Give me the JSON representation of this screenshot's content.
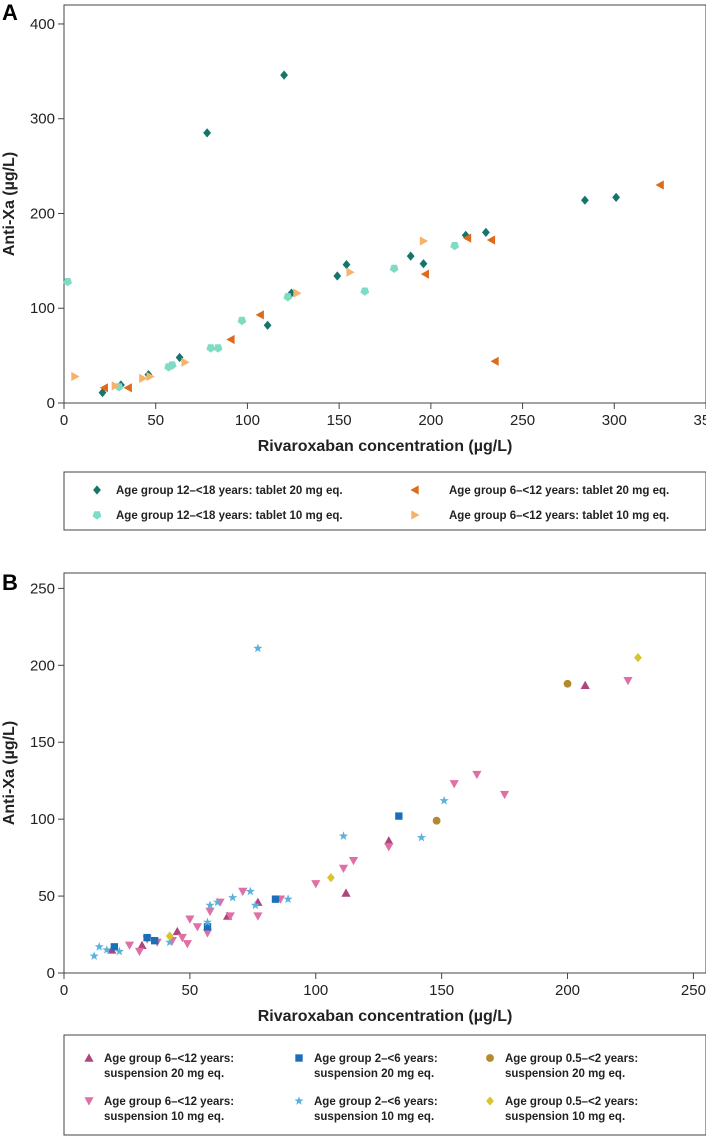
{
  "chart_data": [
    {
      "panel": "A",
      "type": "scatter",
      "xlabel": "Rivaroxaban concentration (µg/L)",
      "ylabel": "Anti-Xa (µg/L)",
      "xlim": [
        0,
        350
      ],
      "ylim": [
        0,
        420
      ],
      "xticks": [
        0,
        50,
        100,
        150,
        200,
        250,
        300,
        350
      ],
      "yticks": [
        0,
        100,
        200,
        300,
        400
      ],
      "series": [
        {
          "name": "Age group 12–<18 years: tablet 20 mg eq.",
          "marker": "diamond",
          "color": "#15756b",
          "points": [
            [
              21,
              11
            ],
            [
              31,
              19
            ],
            [
              46,
              30
            ],
            [
              63,
              48
            ],
            [
              78,
              285
            ],
            [
              111,
              82
            ],
            [
              120,
              346
            ],
            [
              124,
              116
            ],
            [
              149,
              134
            ],
            [
              154,
              146
            ],
            [
              189,
              155
            ],
            [
              196,
              147
            ],
            [
              219,
              177
            ],
            [
              230,
              180
            ],
            [
              284,
              214
            ],
            [
              301,
              217
            ]
          ]
        },
        {
          "name": "Age group 12–<18 years: tablet 10 mg eq.",
          "marker": "pentagon",
          "color": "#7fdcc4",
          "points": [
            [
              2,
              128
            ],
            [
              30,
              17
            ],
            [
              57,
              38
            ],
            [
              59,
              40
            ],
            [
              80,
              58
            ],
            [
              84,
              58
            ],
            [
              97,
              87
            ],
            [
              122,
              112
            ],
            [
              164,
              118
            ],
            [
              180,
              142
            ],
            [
              213,
              166
            ]
          ]
        },
        {
          "name": "Age group 6–<12 years: tablet 20 mg eq.",
          "marker": "triangle-left",
          "color": "#de6a1e",
          "points": [
            [
              22,
              16
            ],
            [
              35,
              16
            ],
            [
              91,
              67
            ],
            [
              107,
              93
            ],
            [
              197,
              136
            ],
            [
              220,
              174
            ],
            [
              233,
              172
            ],
            [
              235,
              44
            ],
            [
              325,
              230
            ]
          ]
        },
        {
          "name": "Age group 6–<12 years: tablet 10 mg eq.",
          "marker": "triangle-right",
          "color": "#f6b26b",
          "points": [
            [
              6,
              28
            ],
            [
              28,
              18
            ],
            [
              43,
              26
            ],
            [
              47,
              28
            ],
            [
              66,
              43
            ],
            [
              127,
              116
            ],
            [
              156,
              138
            ],
            [
              196,
              171
            ]
          ]
        }
      ]
    },
    {
      "panel": "B",
      "type": "scatter",
      "xlabel": "Rivaroxaban concentration (µg/L)",
      "ylabel": "Anti-Xa (µg/L)",
      "xlim": [
        0,
        255
      ],
      "ylim": [
        0,
        260
      ],
      "xticks": [
        0,
        50,
        100,
        150,
        200,
        250
      ],
      "yticks": [
        0,
        50,
        100,
        150,
        200,
        250
      ],
      "series": [
        {
          "name": "Age group 6–<12 years: suspension 20 mg eq.",
          "marker": "triangle-up",
          "color": "#b0447e",
          "points": [
            [
              19,
              15
            ],
            [
              31,
              18
            ],
            [
              45,
              27
            ],
            [
              65,
              37
            ],
            [
              77,
              46
            ],
            [
              112,
              52
            ],
            [
              129,
              86
            ],
            [
              207,
              187
            ]
          ]
        },
        {
          "name": "Age group 6–<12 years: suspension 10 mg eq.",
          "marker": "triangle-down",
          "color": "#e06fa5",
          "points": [
            [
              26,
              18
            ],
            [
              30,
              14
            ],
            [
              33,
              22
            ],
            [
              37,
              20
            ],
            [
              43,
              21
            ],
            [
              47,
              23
            ],
            [
              49,
              19
            ],
            [
              50,
              35
            ],
            [
              53,
              30
            ],
            [
              57,
              26
            ],
            [
              58,
              40
            ],
            [
              62,
              46
            ],
            [
              66,
              37
            ],
            [
              71,
              53
            ],
            [
              77,
              37
            ],
            [
              86,
              48
            ],
            [
              100,
              58
            ],
            [
              111,
              68
            ],
            [
              115,
              73
            ],
            [
              129,
              82
            ],
            [
              155,
              123
            ],
            [
              164,
              129
            ],
            [
              175,
              116
            ],
            [
              224,
              190
            ]
          ]
        },
        {
          "name": "Age group 2–<6 years: suspension 20 mg eq.",
          "marker": "square",
          "color": "#1a6fb8",
          "points": [
            [
              20,
              17
            ],
            [
              33,
              23
            ],
            [
              36,
              21
            ],
            [
              57,
              30
            ],
            [
              84,
              48
            ],
            [
              133,
              102
            ]
          ]
        },
        {
          "name": "Age group 2–<6 years: suspension 10 mg eq.",
          "marker": "star",
          "color": "#5ab1dc",
          "points": [
            [
              12,
              11
            ],
            [
              14,
              17
            ],
            [
              17,
              15
            ],
            [
              22,
              14
            ],
            [
              42,
              20
            ],
            [
              57,
              33
            ],
            [
              58,
              44
            ],
            [
              61,
              46
            ],
            [
              67,
              49
            ],
            [
              74,
              53
            ],
            [
              76,
              44
            ],
            [
              77,
              211
            ],
            [
              89,
              48
            ],
            [
              111,
              89
            ],
            [
              142,
              88
            ],
            [
              151,
              112
            ]
          ]
        },
        {
          "name": "Age group 0.5–<2 years: suspension 20 mg eq.",
          "marker": "circle",
          "color": "#b38a2d",
          "points": [
            [
              148,
              99
            ],
            [
              200,
              188
            ]
          ]
        },
        {
          "name": "Age group 0.5–<2 years: suspension 10 mg eq.",
          "marker": "diamond",
          "color": "#d6c62c",
          "points": [
            [
              42,
              24
            ],
            [
              106,
              62
            ],
            [
              228,
              205
            ]
          ]
        }
      ]
    }
  ],
  "legendA": {
    "entries": [
      {
        "line1": "Age group 12–<18 years: tablet 20 mg eq.",
        "line2": ""
      },
      {
        "line1": "Age group 6–<12 years: tablet 20 mg eq.",
        "line2": ""
      },
      {
        "line1": "Age group 12–<18 years: tablet 10 mg eq.",
        "line2": ""
      },
      {
        "line1": "Age group 6–<12 years: tablet 10 mg eq.",
        "line2": ""
      }
    ]
  },
  "legendB": {
    "entries": [
      {
        "line1": "Age group 6–<12 years:",
        "line2": "suspension 20 mg eq."
      },
      {
        "line1": "Age group 2–<6 years:",
        "line2": "suspension 20 mg eq."
      },
      {
        "line1": "Age group 0.5–<2 years:",
        "line2": "suspension 20 mg eq."
      },
      {
        "line1": "Age group 6–<12 years:",
        "line2": "suspension 10 mg eq."
      },
      {
        "line1": "Age group 2–<6 years:",
        "line2": "suspension 10 mg eq."
      },
      {
        "line1": "Age group 0.5–<2 years:",
        "line2": "suspension 10 mg eq."
      }
    ]
  }
}
